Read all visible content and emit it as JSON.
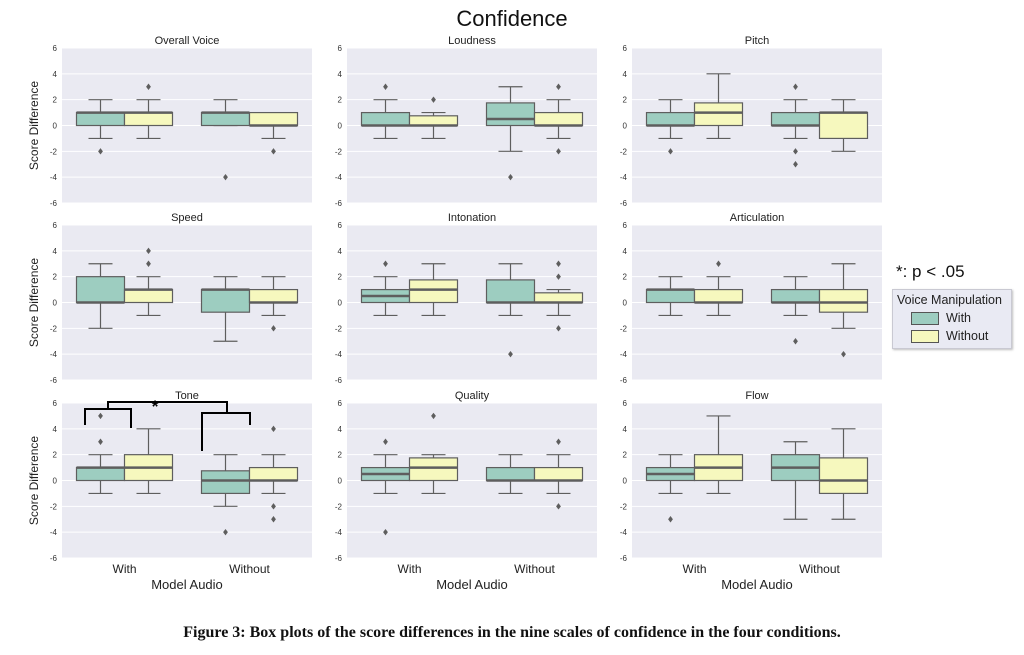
{
  "figure": {
    "title": "Confidence",
    "caption": "Figure 3: Box plots of the score differences in the nine scales of confidence in the four conditions.",
    "significance_note": "*: p < .05",
    "significance_marker": "*",
    "legend": {
      "title": "Voice Manipulation",
      "items": [
        {
          "label": "With",
          "color": "#9dcdc0"
        },
        {
          "label": "Without",
          "color": "#f6f8be"
        }
      ]
    },
    "colors": {
      "panel_bg": "#eaeaf2",
      "box_edge": "#5e5e5e",
      "grid": "#ffffff"
    }
  },
  "chart_data": [
    {
      "type": "box",
      "title": "Overall Voice",
      "ylabel": "Score Difference",
      "xlabel": "",
      "categories": [
        "",
        ""
      ],
      "ylim": [
        -6,
        6
      ],
      "yticks": [
        "6",
        "4",
        "2",
        "0",
        "-2",
        "-4",
        "-6"
      ],
      "series": [
        {
          "name": "With",
          "boxes": [
            {
              "lo": -1,
              "q1": 0,
              "med": 1,
              "q3": 1,
              "hi": 2,
              "out": [
                -2
              ]
            },
            {
              "lo": 0,
              "q1": 0,
              "med": 1,
              "q3": 1,
              "hi": 2,
              "out": [
                -4
              ]
            }
          ]
        },
        {
          "name": "Without",
          "boxes": [
            {
              "lo": -1,
              "q1": 0,
              "med": 1,
              "q3": 1,
              "hi": 2,
              "out": [
                3
              ]
            },
            {
              "lo": -1,
              "q1": 0,
              "med": 0,
              "q3": 1,
              "hi": 1,
              "out": [
                -2
              ]
            }
          ]
        }
      ]
    },
    {
      "type": "box",
      "title": "Loudness",
      "ylabel": "",
      "xlabel": "",
      "categories": [
        "",
        ""
      ],
      "ylim": [
        -6,
        6
      ],
      "yticks": [
        "6",
        "4",
        "2",
        "0",
        "-2",
        "-4",
        "-6"
      ],
      "series": [
        {
          "name": "With",
          "boxes": [
            {
              "lo": -1,
              "q1": 0,
              "med": 0,
              "q3": 1,
              "hi": 2,
              "out": [
                3
              ]
            },
            {
              "lo": -2,
              "q1": 0,
              "med": 0.5,
              "q3": 1.75,
              "hi": 3,
              "out": [
                -4
              ]
            }
          ]
        },
        {
          "name": "Without",
          "boxes": [
            {
              "lo": -1,
              "q1": 0,
              "med": 0,
              "q3": 0.75,
              "hi": 1,
              "out": [
                2
              ]
            },
            {
              "lo": -1,
              "q1": 0,
              "med": 0,
              "q3": 1,
              "hi": 2,
              "out": [
                3,
                -2
              ]
            }
          ]
        }
      ]
    },
    {
      "type": "box",
      "title": "Pitch",
      "ylabel": "",
      "xlabel": "",
      "categories": [
        "",
        ""
      ],
      "ylim": [
        -6,
        6
      ],
      "yticks": [
        "6",
        "4",
        "2",
        "0",
        "-2",
        "-4",
        "-6"
      ],
      "series": [
        {
          "name": "With",
          "boxes": [
            {
              "lo": -1,
              "q1": 0,
              "med": 0,
              "q3": 1,
              "hi": 2,
              "out": [
                -2
              ]
            },
            {
              "lo": -1,
              "q1": 0,
              "med": 0,
              "q3": 1,
              "hi": 2,
              "out": [
                3,
                -2,
                -3
              ]
            }
          ]
        },
        {
          "name": "Without",
          "boxes": [
            {
              "lo": -1,
              "q1": 0,
              "med": 1,
              "q3": 1.75,
              "hi": 4,
              "out": []
            },
            {
              "lo": -2,
              "q1": -1,
              "med": 1,
              "q3": 1,
              "hi": 2,
              "out": []
            }
          ]
        }
      ]
    },
    {
      "type": "box",
      "title": "Speed",
      "ylabel": "Score Difference",
      "xlabel": "",
      "categories": [
        "",
        ""
      ],
      "ylim": [
        -6,
        6
      ],
      "yticks": [
        "6",
        "4",
        "2",
        "0",
        "-2",
        "-4",
        "-6"
      ],
      "series": [
        {
          "name": "With",
          "boxes": [
            {
              "lo": -2,
              "q1": 0,
              "med": 0,
              "q3": 2,
              "hi": 3,
              "out": []
            },
            {
              "lo": -3,
              "q1": -0.75,
              "med": 1,
              "q3": 1,
              "hi": 2,
              "out": []
            }
          ]
        },
        {
          "name": "Without",
          "boxes": [
            {
              "lo": -1,
              "q1": 0,
              "med": 1,
              "q3": 1,
              "hi": 2,
              "out": [
                4,
                3
              ]
            },
            {
              "lo": -1,
              "q1": 0,
              "med": 0,
              "q3": 1,
              "hi": 2,
              "out": [
                -2
              ]
            }
          ]
        }
      ]
    },
    {
      "type": "box",
      "title": "Intonation",
      "ylabel": "",
      "xlabel": "",
      "categories": [
        "",
        ""
      ],
      "ylim": [
        -6,
        6
      ],
      "yticks": [
        "6",
        "4",
        "2",
        "0",
        "-2",
        "-4",
        "-6"
      ],
      "series": [
        {
          "name": "With",
          "boxes": [
            {
              "lo": -1,
              "q1": 0,
              "med": 0.5,
              "q3": 1,
              "hi": 2,
              "out": [
                3
              ]
            },
            {
              "lo": -1,
              "q1": 0,
              "med": 0,
              "q3": 1.75,
              "hi": 3,
              "out": [
                -4
              ]
            }
          ]
        },
        {
          "name": "Without",
          "boxes": [
            {
              "lo": -1,
              "q1": 0,
              "med": 1,
              "q3": 1.75,
              "hi": 3,
              "out": []
            },
            {
              "lo": -1,
              "q1": 0,
              "med": 0,
              "q3": 0.75,
              "hi": 1,
              "out": [
                3,
                2,
                -2
              ]
            }
          ]
        }
      ]
    },
    {
      "type": "box",
      "title": "Articulation",
      "ylabel": "",
      "xlabel": "",
      "categories": [
        "",
        ""
      ],
      "ylim": [
        -6,
        6
      ],
      "yticks": [
        "6",
        "4",
        "2",
        "0",
        "-2",
        "-4",
        "-6"
      ],
      "series": [
        {
          "name": "With",
          "boxes": [
            {
              "lo": -1,
              "q1": 0,
              "med": 1,
              "q3": 1,
              "hi": 2,
              "out": []
            },
            {
              "lo": -1,
              "q1": 0,
              "med": 0,
              "q3": 1,
              "hi": 2,
              "out": [
                -3
              ]
            }
          ]
        },
        {
          "name": "Without",
          "boxes": [
            {
              "lo": -1,
              "q1": 0,
              "med": 0,
              "q3": 1,
              "hi": 2,
              "out": [
                3
              ]
            },
            {
              "lo": -2,
              "q1": -0.75,
              "med": 0,
              "q3": 1,
              "hi": 3,
              "out": [
                -4
              ]
            }
          ]
        }
      ]
    },
    {
      "type": "box",
      "title": "Tone",
      "ylabel": "Score Difference",
      "xlabel": "Model Audio",
      "categories": [
        "With",
        "Without"
      ],
      "ylim": [
        -6,
        6
      ],
      "yticks": [
        "6",
        "4",
        "2",
        "0",
        "-2",
        "-4",
        "-6"
      ],
      "series": [
        {
          "name": "With",
          "boxes": [
            {
              "lo": -1,
              "q1": 0,
              "med": 1,
              "q3": 1,
              "hi": 2,
              "out": [
                5,
                3
              ]
            },
            {
              "lo": -2,
              "q1": -1,
              "med": 0,
              "q3": 0.75,
              "hi": 2,
              "out": [
                -4
              ]
            }
          ]
        },
        {
          "name": "Without",
          "boxes": [
            {
              "lo": -1,
              "q1": 0,
              "med": 1,
              "q3": 2,
              "hi": 4,
              "out": []
            },
            {
              "lo": -1,
              "q1": 0,
              "med": 0,
              "q3": 1,
              "hi": 2,
              "out": [
                4,
                -2,
                -3
              ]
            }
          ]
        }
      ]
    },
    {
      "type": "box",
      "title": "Quality",
      "ylabel": "",
      "xlabel": "Model Audio",
      "categories": [
        "With",
        "Without"
      ],
      "ylim": [
        -6,
        6
      ],
      "yticks": [
        "6",
        "4",
        "2",
        "0",
        "-2",
        "-4",
        "-6"
      ],
      "series": [
        {
          "name": "With",
          "boxes": [
            {
              "lo": -1,
              "q1": 0,
              "med": 0.5,
              "q3": 1,
              "hi": 2,
              "out": [
                3,
                -4
              ]
            },
            {
              "lo": -1,
              "q1": 0,
              "med": 0,
              "q3": 1,
              "hi": 2,
              "out": []
            }
          ]
        },
        {
          "name": "Without",
          "boxes": [
            {
              "lo": -1,
              "q1": 0,
              "med": 1,
              "q3": 1.75,
              "hi": 2,
              "out": [
                5
              ]
            },
            {
              "lo": -1,
              "q1": 0,
              "med": 0,
              "q3": 1,
              "hi": 2,
              "out": [
                3,
                -2
              ]
            }
          ]
        }
      ]
    },
    {
      "type": "box",
      "title": "Flow",
      "ylabel": "",
      "xlabel": "Model Audio",
      "categories": [
        "With",
        "Without"
      ],
      "ylim": [
        -6,
        6
      ],
      "yticks": [
        "6",
        "4",
        "2",
        "0",
        "-2",
        "-4",
        "-6"
      ],
      "series": [
        {
          "name": "With",
          "boxes": [
            {
              "lo": -1,
              "q1": 0,
              "med": 0.5,
              "q3": 1,
              "hi": 2,
              "out": [
                -3
              ]
            },
            {
              "lo": -3,
              "q1": 0,
              "med": 1,
              "q3": 2,
              "hi": 3,
              "out": []
            }
          ]
        },
        {
          "name": "Without",
          "boxes": [
            {
              "lo": -1,
              "q1": 0,
              "med": 1,
              "q3": 2,
              "hi": 5,
              "out": []
            },
            {
              "lo": -3,
              "q1": -1,
              "med": 0,
              "q3": 1.75,
              "hi": 4,
              "out": []
            }
          ]
        }
      ]
    }
  ]
}
